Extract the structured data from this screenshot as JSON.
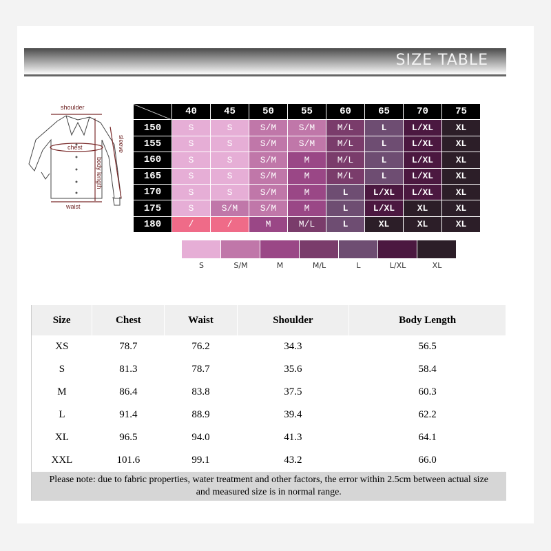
{
  "header": {
    "title": "SIZE TABLE"
  },
  "diagram": {
    "labels": {
      "shoulder": "shoulder",
      "chest": "chest",
      "sleeve": "sleeve",
      "body_length": "body length",
      "waist": "waist"
    }
  },
  "fit_grid": {
    "columns": [
      "40",
      "45",
      "50",
      "55",
      "60",
      "65",
      "70",
      "75"
    ],
    "rows": [
      {
        "label": "150",
        "cells": [
          "S",
          "S",
          "S/M",
          "S/M",
          "M/L",
          "L",
          "L/XL",
          "XL"
        ]
      },
      {
        "label": "155",
        "cells": [
          "S",
          "S",
          "S/M",
          "S/M",
          "M/L",
          "L",
          "L/XL",
          "XL"
        ]
      },
      {
        "label": "160",
        "cells": [
          "S",
          "S",
          "S/M",
          "M",
          "M/L",
          "L",
          "L/XL",
          "XL"
        ]
      },
      {
        "label": "165",
        "cells": [
          "S",
          "S",
          "S/M",
          "M",
          "M/L",
          "L",
          "L/XL",
          "XL"
        ]
      },
      {
        "label": "170",
        "cells": [
          "S",
          "S",
          "S/M",
          "M",
          "L",
          "L/XL",
          "L/XL",
          "XL"
        ]
      },
      {
        "label": "175",
        "cells": [
          "S",
          "S/M",
          "S/M",
          "M",
          "L",
          "L/XL",
          "XL",
          "XL"
        ]
      },
      {
        "label": "180",
        "cells": [
          "/",
          "/",
          "M",
          "M/L",
          "L",
          "XL",
          "XL",
          "XL"
        ]
      }
    ],
    "colors": {
      "S": "#e6aed6",
      "S/M": "#c077a9",
      "M": "#9a4786",
      "M/L": "#7a3c6b",
      "L": "#6e4d72",
      "L/XL": "#4b1840",
      "XL": "#2c1e28",
      "/": "#ef6b88"
    }
  },
  "legend": [
    "S",
    "S/M",
    "M",
    "M/L",
    "L",
    "L/XL",
    "XL"
  ],
  "measurements": {
    "headers": [
      "Size",
      "Chest",
      "Waist",
      "Shoulder",
      "Body Length"
    ],
    "rows": [
      [
        "XS",
        "78.7",
        "76.2",
        "34.3",
        "56.5"
      ],
      [
        "S",
        "81.3",
        "78.7",
        "35.6",
        "58.4"
      ],
      [
        "M",
        "86.4",
        "83.8",
        "37.5",
        "60.3"
      ],
      [
        "L",
        "91.4",
        "88.9",
        "39.4",
        "62.2"
      ],
      [
        "XL",
        "96.5",
        "94.0",
        "41.3",
        "64.1"
      ],
      [
        "XXL",
        "101.6",
        "99.1",
        "43.2",
        "66.0"
      ]
    ],
    "note_line1": "Please note: due to fabric properties, water treatment and other factors, the error within 2.5cm between actual size",
    "note_line2": "and measured size is in normal range."
  }
}
